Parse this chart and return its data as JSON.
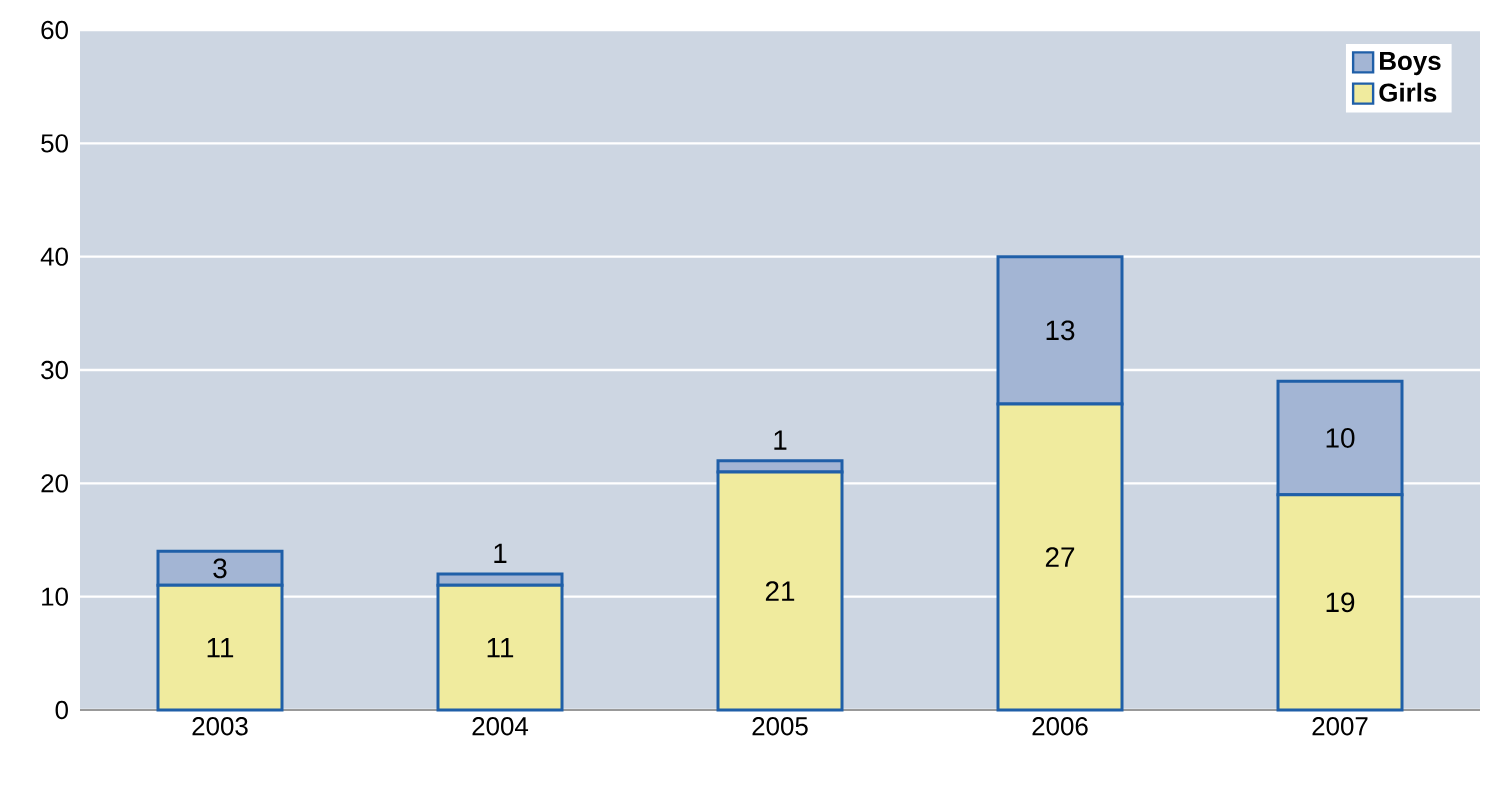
{
  "chart_data": {
    "type": "bar",
    "stacked": true,
    "categories": [
      "2003",
      "2004",
      "2005",
      "2006",
      "2007"
    ],
    "series": [
      {
        "name": "Girls",
        "color": "#f0eb9e",
        "values": [
          11,
          11,
          21,
          27,
          19
        ]
      },
      {
        "name": "Boys",
        "color": "#a3b5d4",
        "values": [
          3,
          1,
          1,
          13,
          10
        ]
      }
    ],
    "ylim": [
      0,
      60
    ],
    "yticks": [
      0,
      10,
      20,
      30,
      40,
      50,
      60
    ],
    "grid": "y",
    "legend": "top right",
    "data_labels": true
  }
}
